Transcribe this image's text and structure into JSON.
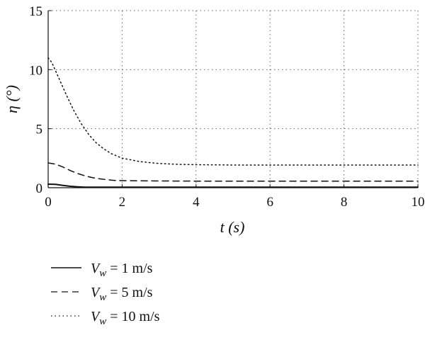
{
  "chart_data": {
    "type": "line",
    "title": "",
    "xlabel": "t (s)",
    "ylabel": "η (°)",
    "xlim": [
      0,
      10
    ],
    "ylim": [
      0,
      15
    ],
    "xticks": [
      "0",
      "2",
      "4",
      "6",
      "8",
      "10"
    ],
    "yticks": [
      "0",
      "5",
      "10",
      "15"
    ],
    "grid": true,
    "legend_position": "bottom",
    "series": [
      {
        "name": "V_w = 1 m/s",
        "legend_main": "V",
        "legend_sub": "w",
        "legend_rest": " = 1 m/s",
        "style": "solid",
        "x": [
          0,
          0.2,
          0.4,
          0.6,
          0.8,
          1.0,
          1.5,
          2,
          4,
          6,
          8,
          10
        ],
        "y": [
          0.3,
          0.28,
          0.2,
          0.12,
          0.07,
          0.05,
          0.05,
          0.05,
          0.05,
          0.05,
          0.05,
          0.05
        ]
      },
      {
        "name": "V_w = 5 m/s",
        "legend_main": "V",
        "legend_sub": "w",
        "legend_rest": " = 5 m/s",
        "style": "dashed",
        "x": [
          0,
          0.2,
          0.4,
          0.6,
          0.8,
          1.0,
          1.2,
          1.4,
          1.6,
          1.8,
          2.0,
          2.5,
          3,
          4,
          6,
          8,
          10
        ],
        "y": [
          2.1,
          2.0,
          1.75,
          1.45,
          1.2,
          1.0,
          0.85,
          0.75,
          0.68,
          0.62,
          0.6,
          0.58,
          0.57,
          0.56,
          0.56,
          0.56,
          0.56
        ]
      },
      {
        "name": "V_w = 10 m/s",
        "legend_main": "V",
        "legend_sub": "w",
        "legend_rest": " = 10 m/s",
        "style": "dotted",
        "x": [
          0,
          0.1,
          0.3,
          0.5,
          0.7,
          0.9,
          1.1,
          1.3,
          1.5,
          1.7,
          2.0,
          2.5,
          3,
          3.5,
          4,
          5,
          6,
          7,
          8,
          9,
          10
        ],
        "y": [
          11.0,
          10.6,
          9.2,
          7.8,
          6.5,
          5.4,
          4.5,
          3.8,
          3.3,
          2.9,
          2.5,
          2.2,
          2.05,
          1.98,
          1.95,
          1.92,
          1.92,
          1.92,
          1.92,
          1.92,
          1.92
        ]
      }
    ]
  }
}
